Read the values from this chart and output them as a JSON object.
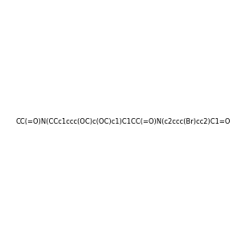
{
  "smiles": "CC(=O)N(CCc1ccc(OC)c(OC)c1)C1CC(=O)N(c2ccc(Br)cc2)C1=O",
  "background_color": "#f0f0f0",
  "title": "",
  "figsize": [
    3.0,
    3.0
  ],
  "dpi": 100,
  "atom_colors": {
    "N": "#0000ff",
    "O": "#ff0000",
    "Br": "#a52a2a",
    "C": "#000000"
  }
}
